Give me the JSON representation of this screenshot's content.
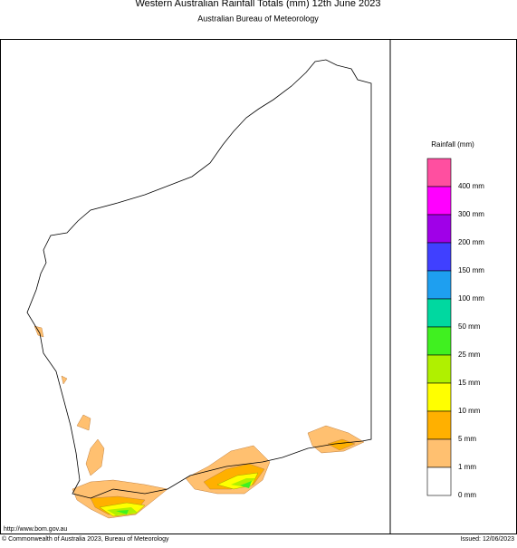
{
  "header": {
    "title": "Western Australian Rainfall Totals (mm) 12th June 2023",
    "subtitle": "Australian Bureau of Meteorology"
  },
  "legend": {
    "title": "Rainfall (mm)",
    "colors": [
      "#ff4fa0",
      "#ff00ff",
      "#a000e8",
      "#4040ff",
      "#1e9ff0",
      "#00d8a0",
      "#40f020",
      "#b0f000",
      "#ffff00",
      "#ffb000",
      "#ffc070",
      "#ffffff"
    ],
    "labels": [
      "400 mm",
      "300 mm",
      "200 mm",
      "150 mm",
      "100 mm",
      "50 mm",
      "25 mm",
      "15 mm",
      "10 mm",
      "5 mm",
      "1 mm",
      "0 mm"
    ]
  },
  "footer": {
    "url": "http://www.bom.gov.au",
    "copyright": "© Commonwealth of Australia 2023, Bureau of Meteorology",
    "issued": "Issued: 12/06/2023"
  }
}
